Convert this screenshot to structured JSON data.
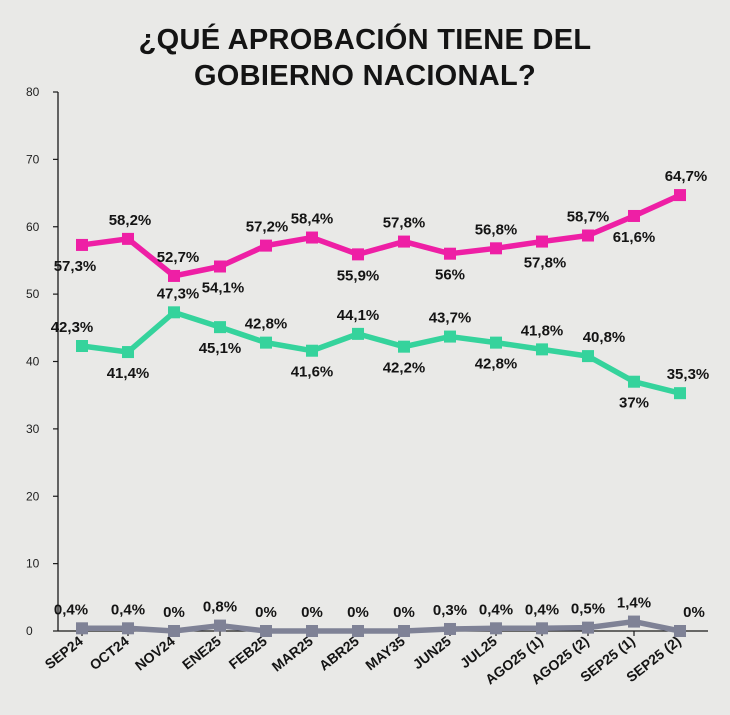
{
  "chart_data": {
    "type": "line",
    "title_line1": "¿QUÉ APROBACIÓN TIENE DEL",
    "title_line2": "GOBIERNO NACIONAL?",
    "categories": [
      "SEP24",
      "OCT24",
      "NOV24",
      "ENE25",
      "FEB25",
      "MAR25",
      "ABR25",
      "MAY35",
      "JUN25",
      "JUL25",
      "AGO25 (1)",
      "AGO25 (2)",
      "SEP25 (1)",
      "SEP25 (2)"
    ],
    "ylim": [
      0,
      80
    ],
    "yticks": [
      0,
      10,
      20,
      30,
      40,
      50,
      60,
      70,
      80
    ],
    "legend": "none",
    "series": [
      {
        "name": "magenta",
        "color": "#ee1fa5",
        "values": [
          57.3,
          58.2,
          52.7,
          54.1,
          57.2,
          58.4,
          55.9,
          57.8,
          56,
          56.8,
          57.8,
          58.7,
          61.6,
          64.7
        ],
        "labels": [
          "57,3%",
          "58,2%",
          "52,7%",
          "54,1%",
          "57,2%",
          "58,4%",
          "55,9%",
          "57,8%",
          "56%",
          "56,8%",
          "57,8%",
          "58,7%",
          "61,6%",
          "64,7%"
        ]
      },
      {
        "name": "green",
        "color": "#35d39c",
        "values": [
          42.3,
          41.4,
          47.3,
          45.1,
          42.8,
          41.6,
          44.1,
          42.2,
          43.7,
          42.8,
          41.8,
          40.8,
          37,
          35.3
        ],
        "labels": [
          "42,3%",
          "41,4%",
          "47,3%",
          "45,1%",
          "42,8%",
          "41,6%",
          "44,1%",
          "42,2%",
          "43,7%",
          "42,8%",
          "41,8%",
          "40,8%",
          "37%",
          "35,3%"
        ]
      },
      {
        "name": "gray",
        "color": "#7f8296",
        "values": [
          0.4,
          0.4,
          0,
          0.8,
          0,
          0,
          0,
          0,
          0.3,
          0.4,
          0.4,
          0.5,
          1.4,
          0
        ],
        "labels": [
          "0,4%",
          "0,4%",
          "0%",
          "0,8%",
          "0%",
          "0%",
          "0%",
          "0%",
          "0,3%",
          "0,4%",
          "0,4%",
          "0,5%",
          "1,4%",
          "0%"
        ]
      }
    ]
  }
}
